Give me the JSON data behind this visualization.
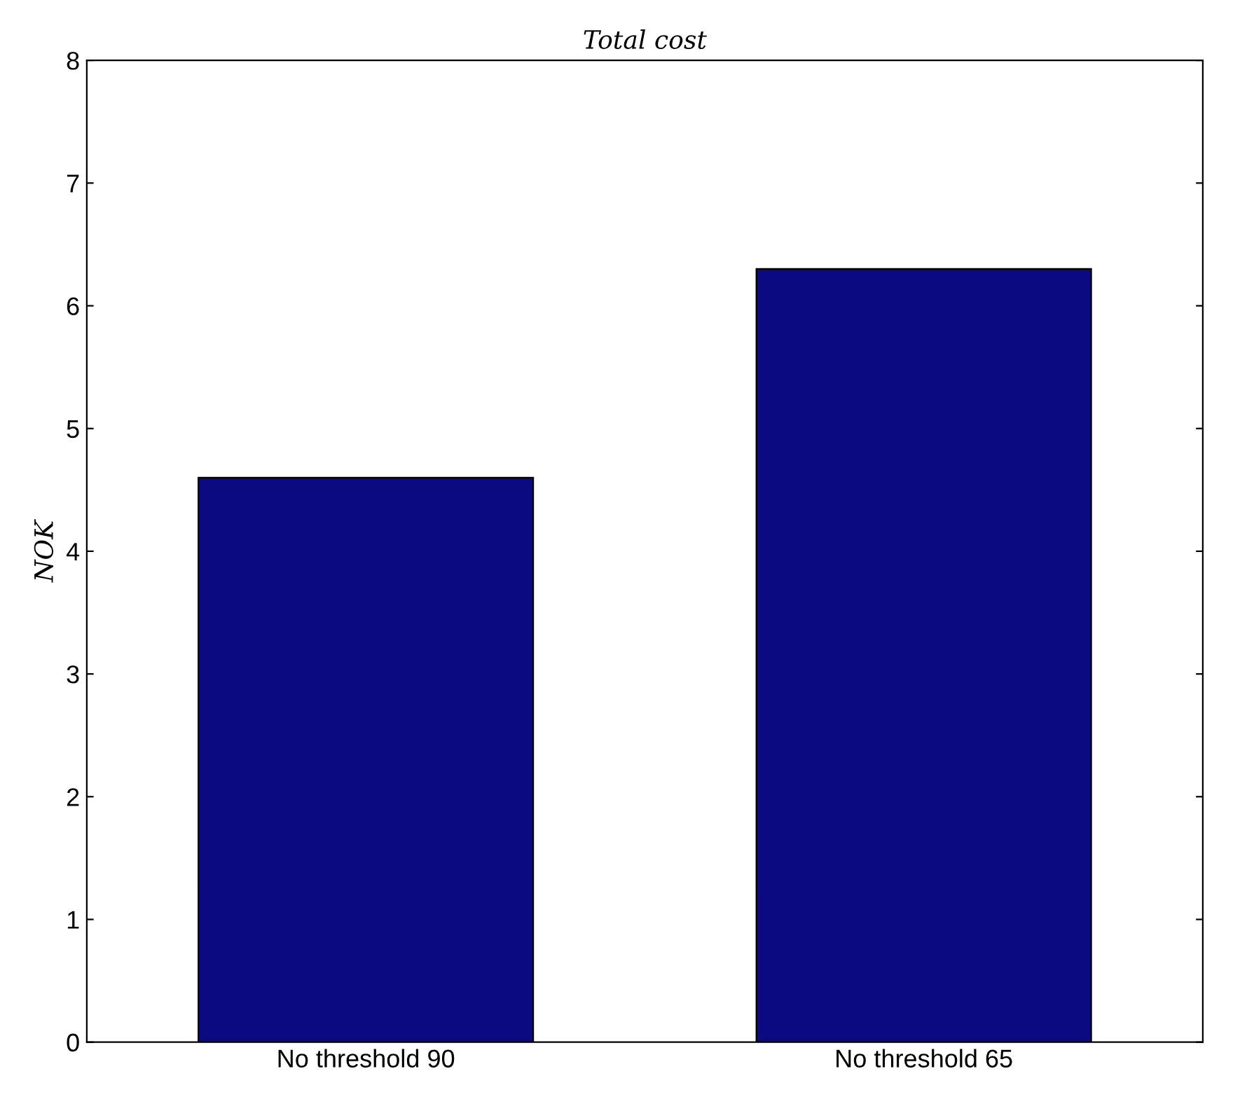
{
  "chart_data": {
    "type": "bar",
    "title": "Total cost",
    "ylabel": "NOK",
    "categories": [
      "No threshold 90",
      "No threshold 65"
    ],
    "values": [
      4.6,
      6.3
    ],
    "color": "#0c0a80",
    "ylim": [
      0,
      8
    ],
    "yticks": [
      0,
      1,
      2,
      3,
      4,
      5,
      6,
      7,
      8
    ],
    "grid": false,
    "legend": false
  }
}
